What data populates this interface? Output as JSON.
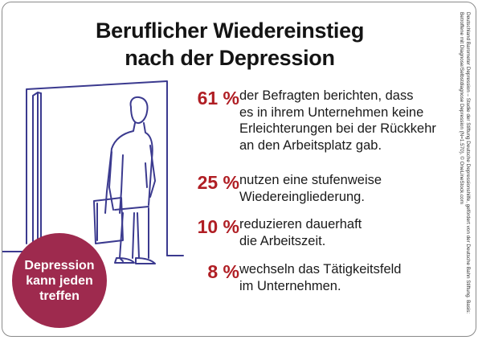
{
  "title_line1": "Beruflicher Wiedereinstieg",
  "title_line2": "nach der Depression",
  "stats": [
    {
      "percent": "61 %",
      "text": "der Befragten berichten, dass\nes in ihrem Unternehmen keine\nErleichterungen bei der Rückkehr\nan den Arbeitsplatz gab."
    },
    {
      "percent": "25 %",
      "text": "nutzen eine stufenweise\nWiedereingliederung."
    },
    {
      "percent": "10 %",
      "text": "reduzieren dauerhaft\ndie Arbeitszeit."
    },
    {
      "percent": "8 %",
      "text": "wechseln das Tätigkeitsfeld\nim Unternehmen."
    }
  ],
  "badge": "Depression\nkann jeden\ntreffen",
  "source": "Deutschland Barometer Depression – Studie der Stiftung Deutsche Depressionshilfe, gefördert von der Deutsche Bahn Stiftung. Basis: Betroffene mit Diagnose/Selbstdiagnose Depression (N=1.570), © OneLineStock.com",
  "colors": {
    "accent": "#b01e24",
    "badge": "#9e2a4e",
    "line_art": "#3b3a8f"
  }
}
